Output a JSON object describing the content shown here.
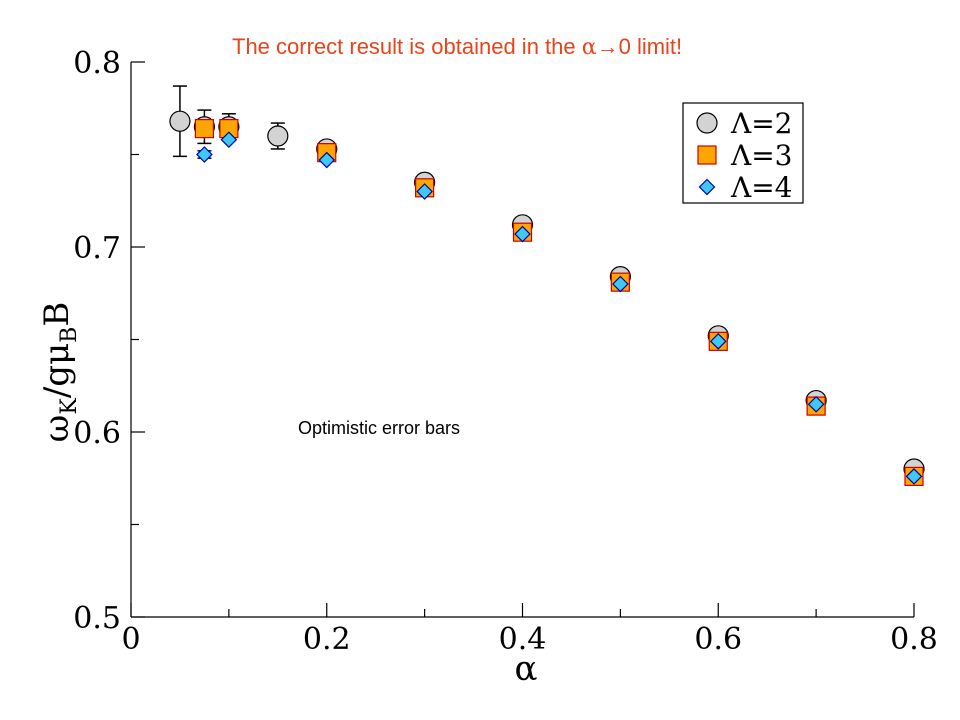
{
  "banner": {
    "prefix": "The correct result is obtained in the ",
    "alpha": "α",
    "suffix": "→0 limit!"
  },
  "note": "Optimistic error bars",
  "chart_data": {
    "type": "scatter",
    "xlabel": "α",
    "ylabel_parts": {
      "omega": "ω",
      "sub_k": "K",
      "mid": "/gμ",
      "sub_b": "B",
      "end": "B"
    },
    "xlim": [
      0,
      0.8
    ],
    "ylim": [
      0.5,
      0.8
    ],
    "xticks": [
      0,
      0.2,
      0.4,
      0.6,
      0.8
    ],
    "xtick_labels": [
      "0",
      "0.2",
      "0.4",
      "0.6",
      "0.8"
    ],
    "yticks": [
      0.5,
      0.6,
      0.7,
      0.8
    ],
    "ytick_labels": [
      "0.5",
      "0.6",
      "0.7",
      "0.8"
    ],
    "grid": false,
    "legend_position": "top-right",
    "series": [
      {
        "name": "Λ=2",
        "marker": "circle",
        "fill": "#d3d3d3",
        "stroke": "#000000",
        "points": [
          {
            "x": 0.05,
            "y": 0.768,
            "err": 0.019
          },
          {
            "x": 0.075,
            "y": 0.765,
            "err": 0.009
          },
          {
            "x": 0.1,
            "y": 0.765,
            "err": 0.007
          },
          {
            "x": 0.15,
            "y": 0.76,
            "err": 0.007
          },
          {
            "x": 0.2,
            "y": 0.753
          },
          {
            "x": 0.3,
            "y": 0.735
          },
          {
            "x": 0.4,
            "y": 0.712
          },
          {
            "x": 0.5,
            "y": 0.684
          },
          {
            "x": 0.6,
            "y": 0.652
          },
          {
            "x": 0.7,
            "y": 0.617
          },
          {
            "x": 0.8,
            "y": 0.58
          }
        ]
      },
      {
        "name": "Λ=3",
        "marker": "square",
        "fill": "#ffa500",
        "stroke": "#cc0000",
        "points": [
          {
            "x": 0.075,
            "y": 0.764,
            "err": 0.004
          },
          {
            "x": 0.1,
            "y": 0.764,
            "err": 0.003
          },
          {
            "x": 0.2,
            "y": 0.751
          },
          {
            "x": 0.3,
            "y": 0.732
          },
          {
            "x": 0.4,
            "y": 0.708
          },
          {
            "x": 0.5,
            "y": 0.681
          },
          {
            "x": 0.6,
            "y": 0.649
          },
          {
            "x": 0.7,
            "y": 0.614
          },
          {
            "x": 0.8,
            "y": 0.576
          }
        ]
      },
      {
        "name": "Λ=4",
        "marker": "diamond",
        "fill": "#3fc8f0",
        "stroke": "#0000aa",
        "points": [
          {
            "x": 0.075,
            "y": 0.75,
            "err": 0.002
          },
          {
            "x": 0.1,
            "y": 0.758
          },
          {
            "x": 0.2,
            "y": 0.747
          },
          {
            "x": 0.3,
            "y": 0.73
          },
          {
            "x": 0.4,
            "y": 0.707
          },
          {
            "x": 0.5,
            "y": 0.68
          },
          {
            "x": 0.6,
            "y": 0.649
          },
          {
            "x": 0.7,
            "y": 0.615
          },
          {
            "x": 0.8,
            "y": 0.576
          }
        ]
      }
    ]
  }
}
